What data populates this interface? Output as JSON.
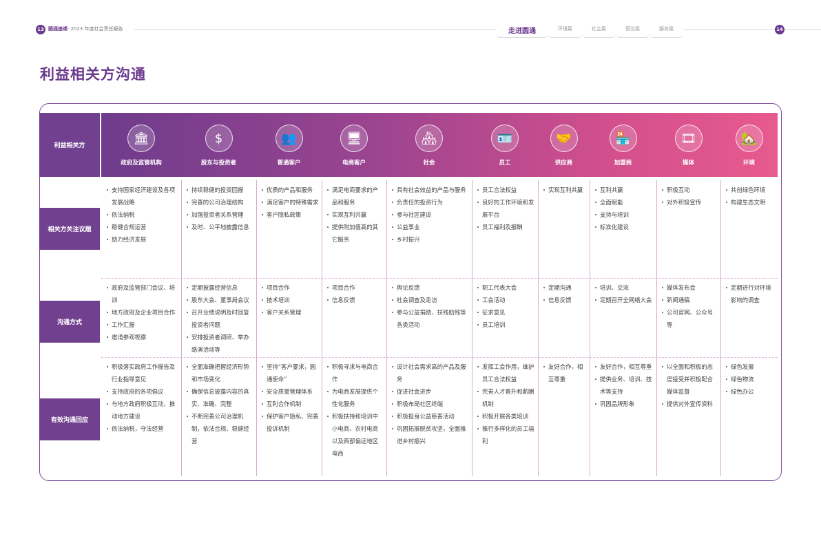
{
  "header": {
    "page_left": "13",
    "brand": "圆通速递",
    "report": "· 2023 年度社会责任报告",
    "page_right": "14",
    "nav": [
      {
        "label": "走进圆通",
        "active": true
      },
      {
        "label": "环境篇"
      },
      {
        "label": "社会篇"
      },
      {
        "label": "管治篇"
      },
      {
        "label": "服务篇"
      }
    ]
  },
  "title": "利益相关方沟通",
  "table": {
    "corner": "利益相关方",
    "row_labels": [
      "相关方关注议题",
      "沟通方式",
      "有效沟通回应"
    ],
    "columns": [
      {
        "name": "政府及监管机构",
        "icon": "government-building-icon",
        "glyph": "🏛",
        "concerns": [
          "支持国家经济建设及各项发展战略",
          "依法纳税",
          "稳健合规运营",
          "助力经济发展"
        ],
        "methods": [
          "政府及监管部门会议、培训",
          "地方政府及企业项目合作",
          "工作汇报",
          "邀请参观视察"
        ],
        "responses": [
          "积极落实政府工作报告及行业指导意见",
          "支持政府的各项倡议",
          "与地方政府积极互动，推动地方建设",
          "依法纳税，守法经营"
        ]
      },
      {
        "name": "股东与投资者",
        "icon": "money-bag-hand-icon",
        "glyph": "$",
        "concerns": [
          "持续稳健的投资回报",
          "完善的公司治理结构",
          "加强投资者关系管理",
          "及时、公平地披露信息"
        ],
        "methods": [
          "定期披露经营信息",
          "股东大会、董事局会议",
          "召开业绩说明及时回复投资者问题",
          "安排投资者调研、举办路演活动等"
        ],
        "responses": [
          "全面准确把握经济形势和市场变化",
          "确保信息披露内容的真实、准确、完整",
          "不断完善公司治理机制，依法合规、稳健经营"
        ]
      },
      {
        "name": "普通客户",
        "icon": "customers-icon",
        "glyph": "👥",
        "concerns": [
          "优质的产品和服务",
          "满足客户的特殊需求",
          "客户隐私政策"
        ],
        "methods": [
          "项目合作",
          "技术培训",
          "客户关系管理"
        ],
        "responses": [
          "坚持“客户要求，圆通使命”",
          "安全质量管理体系",
          "互利合作机制",
          "保护客户隐私、完善投诉机制"
        ]
      },
      {
        "name": "电商客户",
        "icon": "monitor-users-icon",
        "glyph": "🖥",
        "concerns": [
          "满足电商要求的产品和服务",
          "实现互利共赢",
          "提供附加值高的其它服务"
        ],
        "methods": [
          "项目合作",
          "信息反馈"
        ],
        "responses": [
          "积极寻求与电商合作",
          "为电商发展提供个性化服务",
          "积极扶持和培训中小电商、农村电商以及西部偏远地区电商"
        ]
      },
      {
        "name": "社会",
        "icon": "community-houses-icon",
        "glyph": "🏘",
        "concerns": [
          "具有社会效益的产品与服务",
          "负责任的投资行为",
          "参与社区建设",
          "公益事业",
          "乡村振兴"
        ],
        "methods": [
          "舆论反馈",
          "社会调查及走访",
          "参与公益捐助、扶残助残等各类活动"
        ],
        "responses": [
          "设计社会需求高的产品及服务",
          "促进社会进步",
          "积极布局社区终端",
          "积极投身公益慈善活动",
          "巩固拓展脱贫攻坚，全面推进乡村振兴"
        ]
      },
      {
        "name": "员工",
        "icon": "id-card-icon",
        "glyph": "🪪",
        "concerns": [
          "员工合法权益",
          "良好的工作环境和发展平台",
          "员工福利及报酬"
        ],
        "methods": [
          "职工代表大会",
          "工会活动",
          "征求意见",
          "员工培训"
        ],
        "responses": [
          "发挥工会作用，维护员工合法权益",
          "完善人才晋升和薪酬机制",
          "积极开展各类培训",
          "推行多样化的员工福利"
        ]
      },
      {
        "name": "供应商",
        "icon": "handshake-icon",
        "glyph": "🤝",
        "concerns": [
          "实现互利共赢"
        ],
        "methods": [
          "定期沟通",
          "信息反馈"
        ],
        "responses": [
          "友好合作，相互尊重"
        ]
      },
      {
        "name": "加盟商",
        "icon": "storefront-icon",
        "glyph": "🏪",
        "concerns": [
          "互利共赢",
          "全面赋能",
          "支持与培训",
          "标准化建设"
        ],
        "methods": [
          "培训、交流",
          "定期召开全网络大会"
        ],
        "responses": [
          "友好合作，相互尊重",
          "提供业务、培训、技术等支持",
          "巩固品牌形象"
        ]
      },
      {
        "name": "媒体",
        "icon": "film-reel-icon",
        "glyph": "🎞",
        "concerns": [
          "积极互动",
          "对外积极宣传"
        ],
        "methods": [
          "媒体发布会",
          "新闻通稿",
          "公司官网、公众号等"
        ],
        "responses": [
          "以全面和积极的态度接受并积极配合媒体监督",
          "提供对外宣传资料"
        ]
      },
      {
        "name": "环境",
        "icon": "eco-house-leaf-icon",
        "glyph": "🏡",
        "concerns": [
          "共创绿色环境",
          "构建生态文明"
        ],
        "methods": [
          "定期进行对环境影响的调查"
        ],
        "responses": [
          "绿色发展",
          "绿色物流",
          "绿色办公"
        ]
      }
    ]
  }
}
